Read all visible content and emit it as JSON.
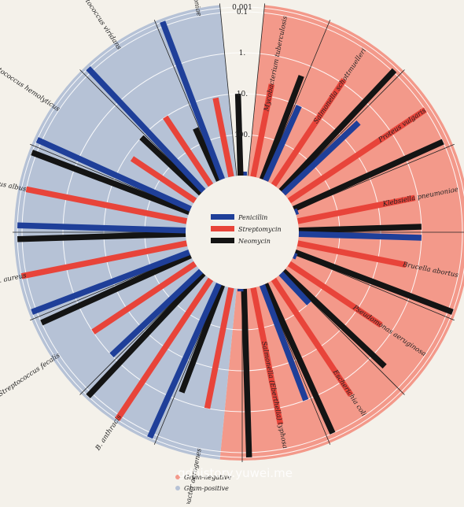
{
  "chart_data": {
    "type": "radial-bar",
    "title": "",
    "scale_labels": [
      "0.001",
      "0.1",
      "1.",
      "10.",
      "100."
    ],
    "scale_log_ticks": [
      0.001,
      0.1,
      1,
      10,
      100
    ],
    "axis_note": "log scale, radius increases as value decreases",
    "drug_legend": [
      {
        "name": "Penicillin",
        "color": "#1f3f99"
      },
      {
        "name": "Streptomycin",
        "color": "#e8443a"
      },
      {
        "name": "Neomycin",
        "color": "#141414"
      }
    ],
    "gram_legend": [
      {
        "label": "Gram-negative",
        "color": "#f3998a"
      },
      {
        "label": "Gram-positive",
        "color": "#b6c2d6"
      }
    ],
    "series_order": [
      "Penicillin",
      "Streptomycin",
      "Neomycin"
    ],
    "bacteria": [
      {
        "name": "Mycobacterium tuberculosis",
        "gram": "negative",
        "values": [
          800,
          5,
          2
        ]
      },
      {
        "name": "Salmonella schottmuelleri",
        "gram": "negative",
        "values": [
          10,
          0.8,
          0.09
        ]
      },
      {
        "name": "Proteus vulgaris",
        "gram": "negative",
        "values": [
          3,
          0.1,
          0.1
        ]
      },
      {
        "name": "Klebsiella pneumoniae",
        "gram": "negative",
        "values": [
          850,
          1.2,
          1
        ]
      },
      {
        "name": "Brucella abortus",
        "gram": "negative",
        "values": [
          1,
          2,
          0.02
        ]
      },
      {
        "name": "Pseudomonas aeruginosa",
        "gram": "negative",
        "values": [
          850,
          2,
          0.4
        ]
      },
      {
        "name": "Escherichia coli",
        "gram": "negative",
        "values": [
          100,
          0.4,
          0.1
        ]
      },
      {
        "name": "Salmonella (Eberthella) typhosa",
        "gram": "negative",
        "values": [
          1,
          0.4,
          0.008
        ]
      },
      {
        "name": "Aerobacter aerogenes",
        "gram": "negative",
        "values": [
          870,
          1,
          1.6
        ]
      },
      {
        "name": "B. anthracis",
        "gram": "positive",
        "values": [
          0.001,
          0.01,
          0.007
        ]
      },
      {
        "name": "Streptococcus fecalis",
        "gram": "positive",
        "values": [
          1,
          1,
          0.1
        ]
      },
      {
        "name": "Staph. aureus",
        "gram": "positive",
        "values": [
          0.03,
          0.03,
          0.001
        ]
      },
      {
        "name": "Staphylococcus albus",
        "gram": "positive",
        "values": [
          0.007,
          0.1,
          0.001
        ]
      },
      {
        "name": "Streptococcus hemolyticus",
        "gram": "positive",
        "values": [
          0.001,
          14,
          10
        ]
      },
      {
        "name": "Streptococcus viridans",
        "gram": "positive",
        "values": [
          0.005,
          10,
          40
        ]
      },
      {
        "name": "Diplococcus pneumoniae",
        "gram": "positive",
        "values": [
          0.005,
          11,
          10
        ]
      }
    ]
  },
  "watermark": "gdhistory.yuwei.me"
}
